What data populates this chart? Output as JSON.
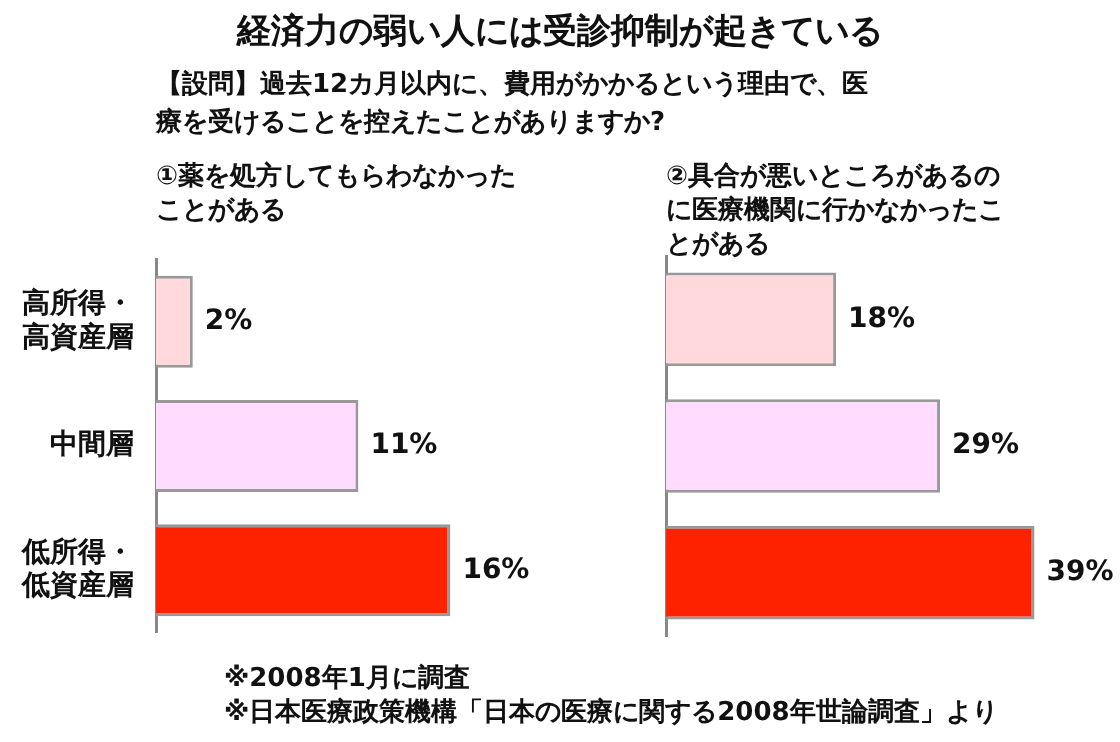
{
  "chart_data": [
    {
      "type": "other",
      "title": "経済力の弱い人には受診抑制が起きている",
      "subtitle": "【設問】過去12カ月以内に、費用がかかるという理由で、医療を受けることを控えたことがありますか?"
    },
    {
      "type": "bar",
      "orientation": "horizontal",
      "title": "①薬を処方してもらわなかったことがある",
      "categories": [
        "高所得・高資産層",
        "中間層",
        "低所得・低資産層"
      ],
      "values": [
        2,
        11,
        16
      ],
      "value_labels": [
        "2%",
        "11%",
        "16%"
      ],
      "colors": [
        "#ffd9dc",
        "#ffdcff",
        "#ff2200"
      ],
      "legend": false,
      "grid": false
    },
    {
      "type": "bar",
      "orientation": "horizontal",
      "title": "②具合が悪いところがあるのに医療機関に行かなかったことがある",
      "categories": [
        "高所得・高資産層",
        "中間層",
        "低所得・低資産層"
      ],
      "values": [
        18,
        29,
        39
      ],
      "value_labels": [
        "18%",
        "29%",
        "39%"
      ],
      "colors": [
        "#ffd9dc",
        "#ffdcff",
        "#ff2200"
      ],
      "legend": false,
      "grid": false,
      "tick_labels": false,
      "annotations": [
        "※2008年1月に調査",
        "※日本医療政策機構「日本の医療に関する2008年世論調査」より"
      ]
    }
  ]
}
